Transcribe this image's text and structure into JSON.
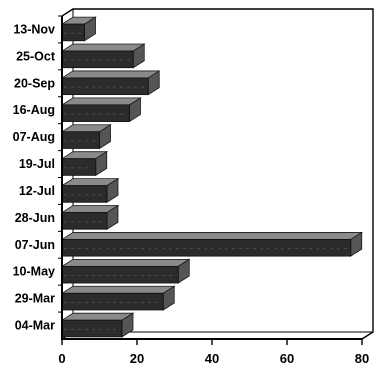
{
  "chart_data": {
    "type": "bar",
    "orientation": "horizontal",
    "three_d": true,
    "categories": [
      "13-Nov",
      "25-Oct",
      "20-Sep",
      "16-Aug",
      "07-Aug",
      "19-Jul",
      "12-Jul",
      "28-Jun",
      "07-Jun",
      "10-May",
      "29-Mar",
      "04-Mar"
    ],
    "values": [
      6,
      19,
      23,
      18,
      10,
      9,
      12,
      12,
      77,
      31,
      27,
      16
    ],
    "xlim": [
      0,
      80
    ],
    "x_ticks": [
      "0",
      "20",
      "40",
      "60",
      "80"
    ],
    "grid": false,
    "legend": "none",
    "title": "",
    "xlabel": "",
    "ylabel": "",
    "colors": {
      "bar_face": "#2b2b2b",
      "bar_top": "#8a8a8a",
      "bar_end": "#555555",
      "axis": "#000000",
      "wall": "#000000"
    }
  }
}
